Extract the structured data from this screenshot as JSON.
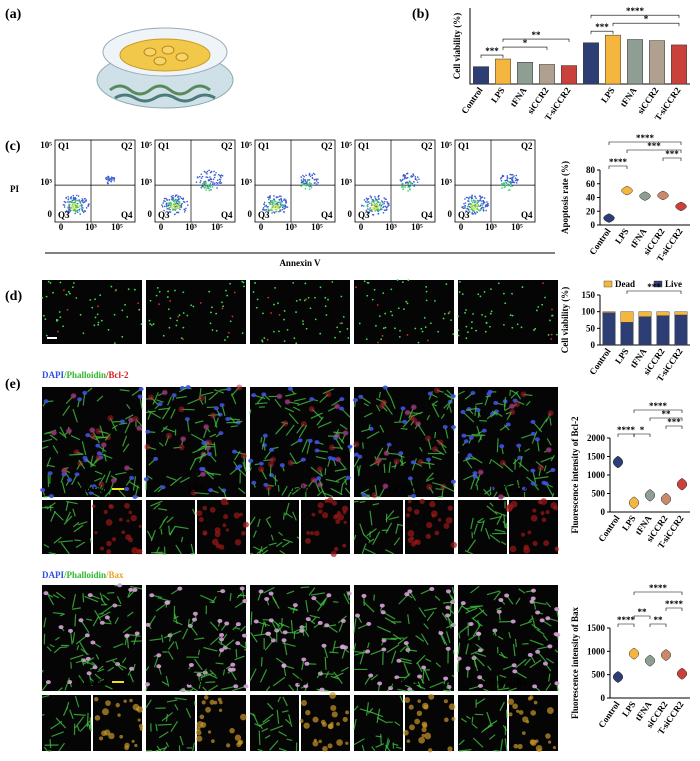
{
  "panel_labels": [
    "(a)",
    "(b)",
    "(c)",
    "(d)",
    "(e)"
  ],
  "flow": {
    "y_label": "PI",
    "x_label": "Annexin V",
    "quadrants": [
      "Q1",
      "Q2",
      "Q3",
      "Q4"
    ],
    "xticks": [
      "0",
      "10³",
      "10⁵"
    ],
    "yticks": [
      "10⁵",
      "10³",
      "0"
    ]
  },
  "images": {
    "labels": [
      "Control",
      "LPS",
      "tFNA",
      "siCCR2",
      "T-siCCR2"
    ],
    "bcl2_stains": [
      "DAPI",
      "/Phalloidin",
      "/Bcl-2"
    ],
    "bax_stains": [
      "DAPI",
      "/Phalloidin",
      "/Bax"
    ]
  },
  "chart_data": [
    {
      "type": "bar",
      "y_label": "Cell viability (%)",
      "categories": [
        "Control",
        "LPS",
        "tFNA",
        "siCCR2",
        "T-siCCR2",
        null,
        "LPS",
        "tFNA",
        "siCCR2",
        "T-siCCR2"
      ],
      "values": [
        80,
        115,
        100,
        90,
        85,
        190,
        225,
        205,
        200,
        180
      ],
      "colors": [
        "#2c3e73",
        "#f4b63f",
        "#8e9e92",
        "#b0a090",
        "#c8413b",
        "#2c3e73",
        "#f4b63f",
        "#8e9e92",
        "#b0a090",
        "#c8413b"
      ],
      "ylim": [
        0,
        350
      ],
      "significance": [
        "***",
        "**",
        "*",
        "***",
        "****",
        "*"
      ]
    },
    {
      "type": "violin",
      "y_label": "Apoptosis rate (%)",
      "categories": [
        "Control",
        "LPS",
        "tFNA",
        "siCCR2",
        "T-siCCR2"
      ],
      "values": [
        10,
        50,
        42,
        43,
        27
      ],
      "colors": [
        "#2c3e73",
        "#f4b63f",
        "#8e9e92",
        "#c98a6a",
        "#c8413b"
      ],
      "ylim": [
        0,
        80
      ],
      "yticks": [
        0,
        20,
        40,
        60,
        80
      ],
      "significance": [
        "****",
        "****",
        "***",
        "***"
      ]
    },
    {
      "type": "stacked_bar",
      "y_label": "Cell viability (%)",
      "categories": [
        "Control",
        "LPS",
        "tFNA",
        "siCCR2",
        "T-siCCR2"
      ],
      "series": [
        {
          "name": "Live",
          "color": "#2c3e73",
          "values": [
            97,
            68,
            85,
            88,
            90
          ]
        },
        {
          "name": "Dead",
          "color": "#f4b63f",
          "values": [
            3,
            32,
            15,
            12,
            10
          ]
        }
      ],
      "ylim": [
        0,
        150
      ],
      "yticks": [
        0,
        50,
        100,
        150
      ],
      "significance": [
        "***"
      ]
    },
    {
      "type": "violin",
      "y_label": "Fluorescence intensity of Bcl-2",
      "categories": [
        "Control",
        "LPS",
        "tFNA",
        "siCCR2",
        "T-siCCR2"
      ],
      "values": [
        1350,
        250,
        450,
        350,
        750
      ],
      "colors": [
        "#2c3e73",
        "#f4b63f",
        "#8e9e92",
        "#c98a6a",
        "#c8413b"
      ],
      "ylim": [
        0,
        2000
      ],
      "yticks": [
        0,
        500,
        1000,
        1500,
        2000
      ],
      "significance": [
        "****",
        "*",
        "****",
        "**",
        "***"
      ]
    },
    {
      "type": "violin",
      "y_label": "Fluorescence intensity of Bax",
      "categories": [
        "Control",
        "LPS",
        "tFNA",
        "siCCR2",
        "T-siCCR2"
      ],
      "values": [
        450,
        950,
        800,
        920,
        520
      ],
      "colors": [
        "#2c3e73",
        "#f4b63f",
        "#8e9e92",
        "#c98a6a",
        "#c8413b"
      ],
      "ylim": [
        0,
        1500
      ],
      "yticks": [
        0,
        500,
        1000,
        1500
      ],
      "significance": [
        "****",
        "**",
        "**",
        "****",
        "****"
      ]
    }
  ]
}
